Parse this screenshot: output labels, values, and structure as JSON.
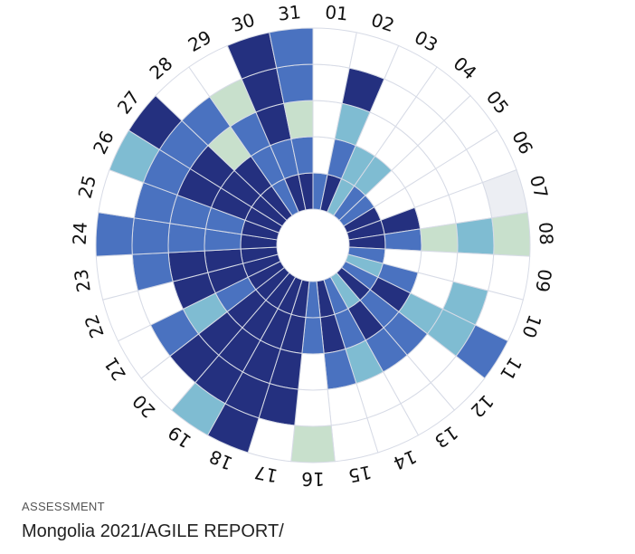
{
  "caption": {
    "eyebrow": "ASSESSMENT",
    "title": "Mongolia 2021/AGILE REPORT/"
  },
  "chart_data": {
    "type": "heatmap",
    "layout": "radial",
    "days": [
      "01",
      "02",
      "03",
      "04",
      "05",
      "06",
      "07",
      "08",
      "09",
      "10",
      "11",
      "12",
      "13",
      "14",
      "15",
      "16",
      "17",
      "18",
      "19",
      "20",
      "21",
      "22",
      "23",
      "24",
      "25",
      "26",
      "27",
      "28",
      "29",
      "30",
      "31"
    ],
    "rings": 5,
    "levels": {
      "0": "#ffffff",
      "1": "#c8e0cc",
      "2": "#7fbcd2",
      "3": "#4a72c0",
      "4": "#24307f",
      "5": "#eceef3"
    },
    "values": [
      [
        3,
        0,
        0,
        0,
        0
      ],
      [
        4,
        3,
        2,
        4,
        0
      ],
      [
        2,
        2,
        0,
        0,
        0
      ],
      [
        3,
        2,
        0,
        0,
        0
      ],
      [
        3,
        0,
        0,
        0,
        0
      ],
      [
        4,
        0,
        0,
        0,
        0
      ],
      [
        4,
        4,
        0,
        0,
        5
      ],
      [
        4,
        3,
        1,
        2,
        1
      ],
      [
        3,
        0,
        0,
        0,
        0
      ],
      [
        2,
        3,
        0,
        2,
        0
      ],
      [
        3,
        4,
        2,
        2,
        3
      ],
      [
        4,
        3,
        3,
        0,
        0
      ],
      [
        2,
        4,
        3,
        0,
        0
      ],
      [
        3,
        3,
        2,
        0,
        0
      ],
      [
        4,
        4,
        3,
        0,
        0
      ],
      [
        3,
        3,
        0,
        0,
        1
      ],
      [
        4,
        4,
        4,
        4,
        0
      ],
      [
        4,
        4,
        4,
        4,
        4
      ],
      [
        4,
        4,
        4,
        4,
        2
      ],
      [
        4,
        4,
        4,
        4,
        0
      ],
      [
        4,
        3,
        2,
        3,
        0
      ],
      [
        4,
        4,
        4,
        0,
        0
      ],
      [
        4,
        4,
        4,
        3,
        0
      ],
      [
        4,
        3,
        3,
        3,
        3
      ],
      [
        4,
        3,
        3,
        3,
        0
      ],
      [
        4,
        4,
        4,
        3,
        2
      ],
      [
        4,
        4,
        4,
        3,
        4
      ],
      [
        4,
        4,
        1,
        3,
        0
      ],
      [
        3,
        3,
        3,
        1,
        0
      ],
      [
        4,
        3,
        4,
        4,
        4
      ],
      [
        4,
        3,
        1,
        3,
        3
      ]
    ]
  }
}
